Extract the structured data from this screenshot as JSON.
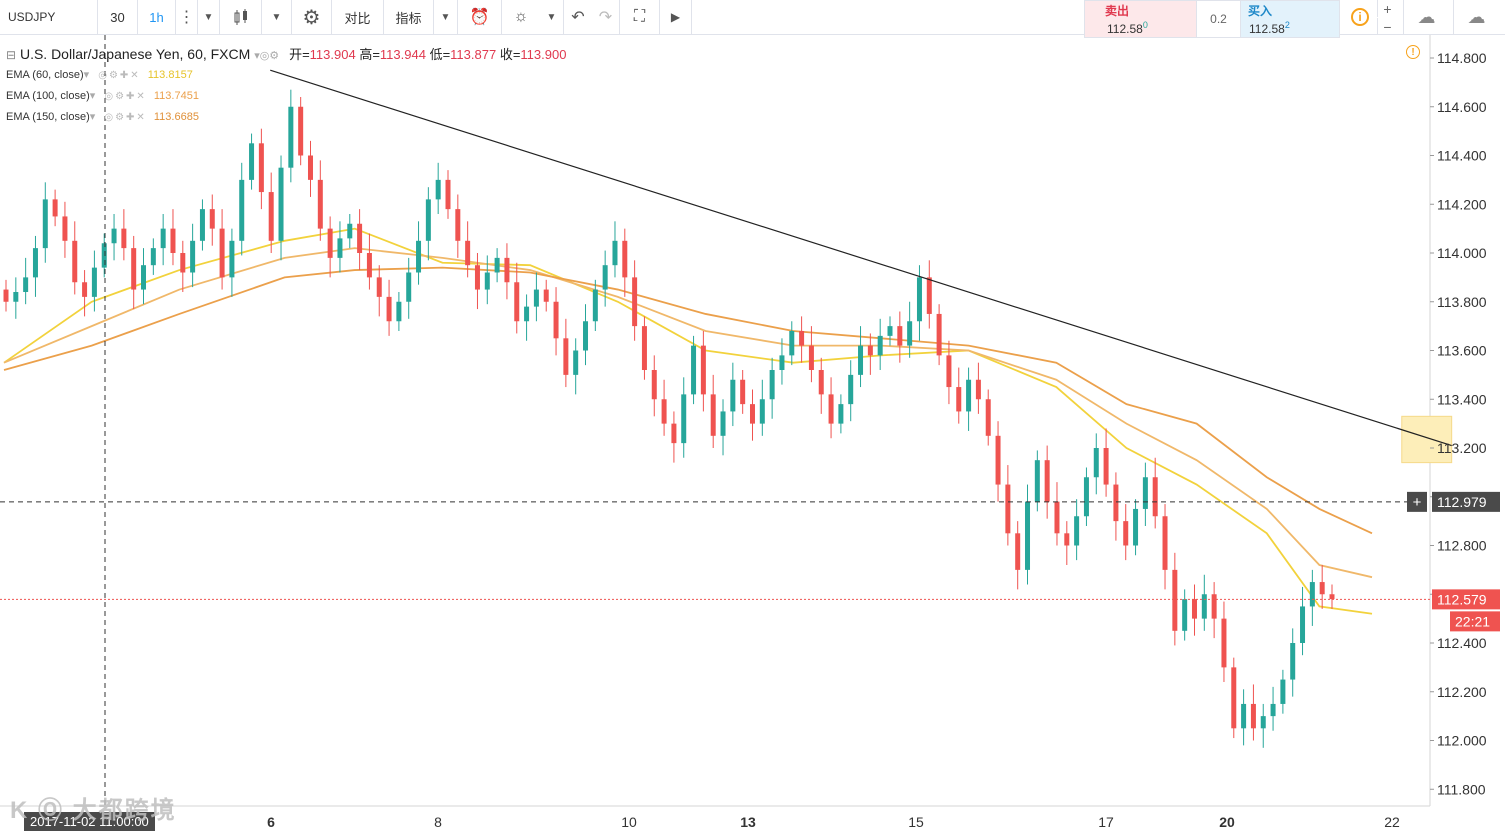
{
  "toolbar": {
    "symbol": "USDJPY",
    "interval_30": "30",
    "interval_1h": "1h",
    "compare_label": "对比",
    "indicators_label": "指标"
  },
  "trade": {
    "sell_label": "卖出",
    "sell_price": "112.58",
    "sell_sup": "0",
    "spread": "0.2",
    "buy_label": "买入",
    "buy_price": "112.58",
    "buy_sup": "2",
    "plus": "+",
    "minus": "−"
  },
  "legend": {
    "title": "U.S. Dollar/Japanese Yen, 60, FXCM",
    "open_label": "开=",
    "open": "113.904",
    "high_label": "高=",
    "high": "113.944",
    "low_label": "低=",
    "low": "113.877",
    "close_label": "收=",
    "close": "113.900"
  },
  "indicators": [
    {
      "name": "EMA (60, close)",
      "value": "113.8157",
      "color": "#f2d23c"
    },
    {
      "name": "EMA (100, close)",
      "value": "113.7451",
      "color": "#f0b86a"
    },
    {
      "name": "EMA (150, close)",
      "value": "113.6685",
      "color": "#eba04b"
    }
  ],
  "crosshair_time": "2017-11-02 11:00:00",
  "watermark": "K Ⓞ 大都跨境",
  "chart_data": {
    "type": "candlestick",
    "symbol": "USDJPY",
    "timeframe": "60",
    "ylim": [
      111.8,
      114.8
    ],
    "y_ticks": [
      "114.800",
      "114.600",
      "114.400",
      "114.200",
      "114.000",
      "113.800",
      "113.600",
      "113.400",
      "113.200",
      "113.000",
      "112.800",
      "112.600",
      "112.400",
      "112.200",
      "112.000",
      "111.800"
    ],
    "x_ticks": [
      {
        "label": "6",
        "bold": true
      },
      {
        "label": "8",
        "bold": false
      },
      {
        "label": "10",
        "bold": false
      },
      {
        "label": "13",
        "bold": true
      },
      {
        "label": "15",
        "bold": false
      },
      {
        "label": "17",
        "bold": false
      },
      {
        "label": "20",
        "bold": true
      },
      {
        "label": "22",
        "bold": false
      }
    ],
    "last_price": "112.579",
    "countdown": "22:21",
    "crosshair_price": "112.979",
    "up_color": "#26a69a",
    "down_color": "#ef5350",
    "trendline": {
      "start": {
        "hour": 64,
        "price": 114.75
      },
      "end": {
        "hour": 348,
        "price": 113.21
      }
    },
    "highlight_box": {
      "hour_from": 336,
      "hour_to": 348,
      "price_from": 113.33,
      "price_to": 113.14
    },
    "series": [
      {
        "name": "EMA 60",
        "color": "#f2d23c",
        "points": [
          [
            0,
            113.55
          ],
          [
            20,
            113.8
          ],
          [
            40,
            113.93
          ],
          [
            64,
            114.05
          ],
          [
            80,
            114.1
          ],
          [
            100,
            113.96
          ],
          [
            120,
            113.95
          ],
          [
            140,
            113.8
          ],
          [
            160,
            113.6
          ],
          [
            180,
            113.55
          ],
          [
            200,
            113.58
          ],
          [
            220,
            113.6
          ],
          [
            240,
            113.45
          ],
          [
            256,
            113.2
          ],
          [
            272,
            113.05
          ],
          [
            288,
            112.85
          ],
          [
            300,
            112.55
          ],
          [
            312,
            112.52
          ]
        ]
      },
      {
        "name": "EMA 100",
        "color": "#f0b86a",
        "points": [
          [
            0,
            113.55
          ],
          [
            20,
            113.7
          ],
          [
            40,
            113.85
          ],
          [
            64,
            113.98
          ],
          [
            80,
            114.02
          ],
          [
            100,
            113.98
          ],
          [
            120,
            113.93
          ],
          [
            140,
            113.82
          ],
          [
            160,
            113.68
          ],
          [
            180,
            113.62
          ],
          [
            200,
            113.62
          ],
          [
            220,
            113.6
          ],
          [
            240,
            113.48
          ],
          [
            256,
            113.3
          ],
          [
            272,
            113.15
          ],
          [
            288,
            112.95
          ],
          [
            300,
            112.72
          ],
          [
            312,
            112.67
          ]
        ]
      },
      {
        "name": "EMA 150",
        "color": "#eba04b",
        "points": [
          [
            0,
            113.52
          ],
          [
            20,
            113.62
          ],
          [
            40,
            113.75
          ],
          [
            64,
            113.9
          ],
          [
            80,
            113.93
          ],
          [
            100,
            113.94
          ],
          [
            120,
            113.92
          ],
          [
            140,
            113.85
          ],
          [
            160,
            113.75
          ],
          [
            180,
            113.68
          ],
          [
            200,
            113.65
          ],
          [
            220,
            113.62
          ],
          [
            240,
            113.55
          ],
          [
            256,
            113.38
          ],
          [
            272,
            113.3
          ],
          [
            288,
            113.08
          ],
          [
            300,
            112.95
          ],
          [
            312,
            112.85
          ]
        ]
      }
    ],
    "candles": [
      [
        113.85,
        113.8
      ],
      [
        113.8,
        113.84
      ],
      [
        113.84,
        113.9
      ],
      [
        113.9,
        114.02
      ],
      [
        114.02,
        114.22
      ],
      [
        114.22,
        114.15
      ],
      [
        114.15,
        114.05
      ],
      [
        114.05,
        113.88
      ],
      [
        113.88,
        113.82
      ],
      [
        113.82,
        113.94
      ],
      [
        113.94,
        114.04
      ],
      [
        114.04,
        114.1
      ],
      [
        114.1,
        114.02
      ],
      [
        114.02,
        113.85
      ],
      [
        113.85,
        113.95
      ],
      [
        113.95,
        114.02
      ],
      [
        114.02,
        114.1
      ],
      [
        114.1,
        114.0
      ],
      [
        114.0,
        113.92
      ],
      [
        113.92,
        114.05
      ],
      [
        114.05,
        114.18
      ],
      [
        114.18,
        114.1
      ],
      [
        114.1,
        113.9
      ],
      [
        113.9,
        114.05
      ],
      [
        114.05,
        114.3
      ],
      [
        114.3,
        114.45
      ],
      [
        114.45,
        114.25
      ],
      [
        114.25,
        114.05
      ],
      [
        114.05,
        114.35
      ],
      [
        114.35,
        114.6
      ],
      [
        114.6,
        114.4
      ],
      [
        114.4,
        114.3
      ],
      [
        114.3,
        114.1
      ],
      [
        114.1,
        113.98
      ],
      [
        113.98,
        114.06
      ],
      [
        114.06,
        114.12
      ],
      [
        114.12,
        114.0
      ],
      [
        114.0,
        113.9
      ],
      [
        113.9,
        113.82
      ],
      [
        113.82,
        113.72
      ],
      [
        113.72,
        113.8
      ],
      [
        113.8,
        113.92
      ],
      [
        113.92,
        114.05
      ],
      [
        114.05,
        114.22
      ],
      [
        114.22,
        114.3
      ],
      [
        114.3,
        114.18
      ],
      [
        114.18,
        114.05
      ],
      [
        114.05,
        113.95
      ],
      [
        113.95,
        113.85
      ],
      [
        113.85,
        113.92
      ],
      [
        113.92,
        113.98
      ],
      [
        113.98,
        113.88
      ],
      [
        113.88,
        113.72
      ],
      [
        113.72,
        113.78
      ],
      [
        113.78,
        113.85
      ],
      [
        113.85,
        113.8
      ],
      [
        113.8,
        113.65
      ],
      [
        113.65,
        113.5
      ],
      [
        113.5,
        113.6
      ],
      [
        113.6,
        113.72
      ],
      [
        113.72,
        113.85
      ],
      [
        113.85,
        113.95
      ],
      [
        113.95,
        114.05
      ],
      [
        114.05,
        113.9
      ],
      [
        113.9,
        113.7
      ],
      [
        113.7,
        113.52
      ],
      [
        113.52,
        113.4
      ],
      [
        113.4,
        113.3
      ],
      [
        113.3,
        113.22
      ],
      [
        113.22,
        113.42
      ],
      [
        113.42,
        113.62
      ],
      [
        113.62,
        113.42
      ],
      [
        113.42,
        113.25
      ],
      [
        113.25,
        113.35
      ],
      [
        113.35,
        113.48
      ],
      [
        113.48,
        113.38
      ],
      [
        113.38,
        113.3
      ],
      [
        113.3,
        113.4
      ],
      [
        113.4,
        113.52
      ],
      [
        113.52,
        113.58
      ],
      [
        113.58,
        113.68
      ],
      [
        113.68,
        113.62
      ],
      [
        113.62,
        113.52
      ],
      [
        113.52,
        113.42
      ],
      [
        113.42,
        113.3
      ],
      [
        113.3,
        113.38
      ],
      [
        113.38,
        113.5
      ],
      [
        113.5,
        113.62
      ],
      [
        113.62,
        113.58
      ],
      [
        113.58,
        113.66
      ],
      [
        113.66,
        113.7
      ],
      [
        113.7,
        113.62
      ],
      [
        113.62,
        113.72
      ],
      [
        113.72,
        113.9
      ],
      [
        113.9,
        113.75
      ],
      [
        113.75,
        113.58
      ],
      [
        113.58,
        113.45
      ],
      [
        113.45,
        113.35
      ],
      [
        113.35,
        113.48
      ],
      [
        113.48,
        113.4
      ],
      [
        113.4,
        113.25
      ],
      [
        113.25,
        113.05
      ],
      [
        113.05,
        112.85
      ],
      [
        112.85,
        112.7
      ],
      [
        112.7,
        112.98
      ],
      [
        112.98,
        113.15
      ],
      [
        113.15,
        112.98
      ],
      [
        112.98,
        112.85
      ],
      [
        112.85,
        112.8
      ],
      [
        112.8,
        112.92
      ],
      [
        112.92,
        113.08
      ],
      [
        113.08,
        113.2
      ],
      [
        113.2,
        113.05
      ],
      [
        113.05,
        112.9
      ],
      [
        112.9,
        112.8
      ],
      [
        112.8,
        112.95
      ],
      [
        112.95,
        113.08
      ],
      [
        113.08,
        112.92
      ],
      [
        112.92,
        112.7
      ],
      [
        112.7,
        112.45
      ],
      [
        112.45,
        112.58
      ],
      [
        112.58,
        112.5
      ],
      [
        112.5,
        112.6
      ],
      [
        112.6,
        112.5
      ],
      [
        112.5,
        112.3
      ],
      [
        112.3,
        112.05
      ],
      [
        112.05,
        112.15
      ],
      [
        112.15,
        112.05
      ],
      [
        112.05,
        112.1
      ],
      [
        112.1,
        112.15
      ],
      [
        112.15,
        112.25
      ],
      [
        112.25,
        112.4
      ],
      [
        112.4,
        112.55
      ],
      [
        112.55,
        112.65
      ],
      [
        112.65,
        112.6
      ],
      [
        112.6,
        112.58
      ]
    ]
  }
}
